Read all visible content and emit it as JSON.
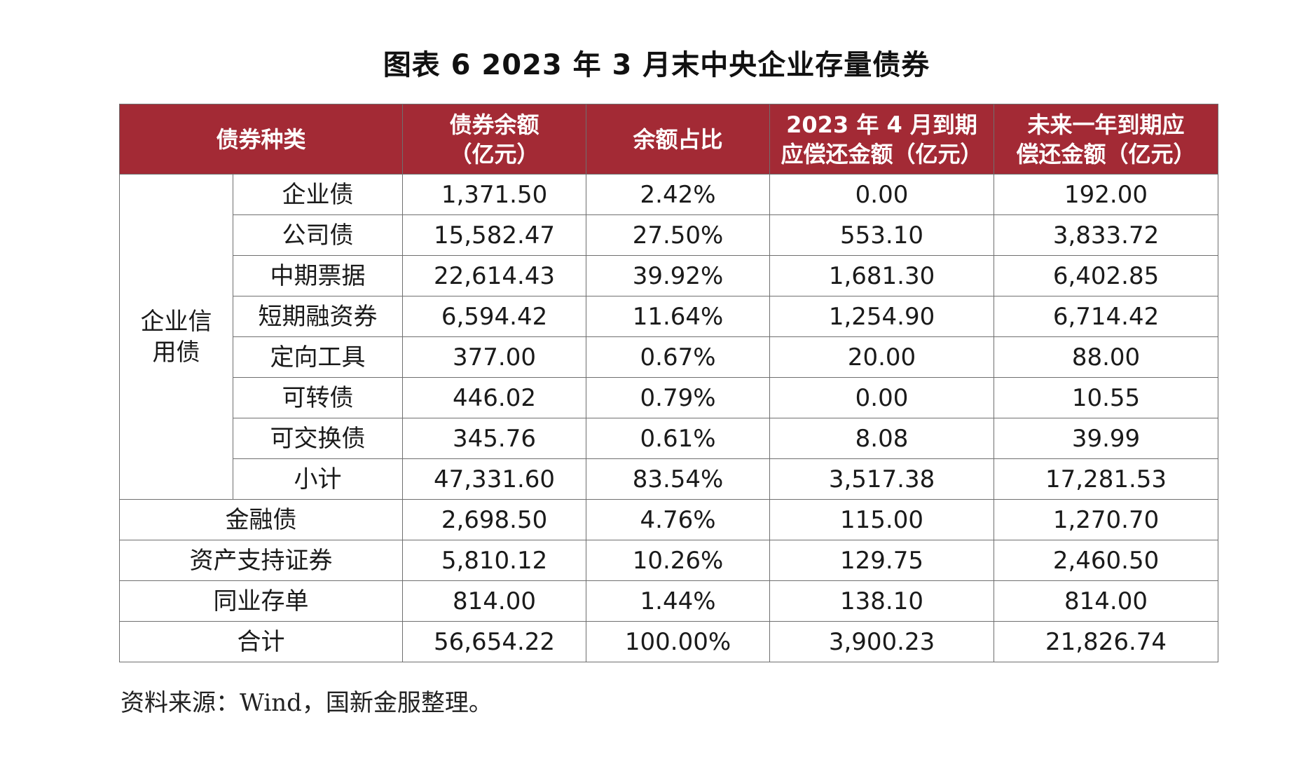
{
  "title": "图表 6  2023 年 3 月末中央企业存量债券",
  "table": {
    "headers": [
      "债券种类",
      "债券余额\n（亿元）",
      "余额占比",
      "2023 年 4 月到期\n应偿还金额（亿元）",
      "未来一年到期应\n偿还金额（亿元）"
    ],
    "group_label": "企业信\n用债",
    "group_rows": [
      [
        "企业债",
        "1,371.50",
        "2.42%",
        "0.00",
        "192.00"
      ],
      [
        "公司债",
        "15,582.47",
        "27.50%",
        "553.10",
        "3,833.72"
      ],
      [
        "中期票据",
        "22,614.43",
        "39.92%",
        "1,681.30",
        "6,402.85"
      ],
      [
        "短期融资券",
        "6,594.42",
        "11.64%",
        "1,254.90",
        "6,714.42"
      ],
      [
        "定向工具",
        "377.00",
        "0.67%",
        "20.00",
        "88.00"
      ],
      [
        "可转债",
        "446.02",
        "0.79%",
        "0.00",
        "10.55"
      ],
      [
        "可交换债",
        "345.76",
        "0.61%",
        "8.08",
        "39.99"
      ],
      [
        "小计",
        "47,331.60",
        "83.54%",
        "3,517.38",
        "17,281.53"
      ]
    ],
    "other_rows": [
      [
        "金融债",
        "2,698.50",
        "4.76%",
        "115.00",
        "1,270.70"
      ],
      [
        "资产支持证券",
        "5,810.12",
        "10.26%",
        "129.75",
        "2,460.50"
      ],
      [
        "同业存单",
        "814.00",
        "1.44%",
        "138.10",
        "814.00"
      ],
      [
        "合计",
        "56,654.22",
        "100.00%",
        "3,900.23",
        "21,826.74"
      ]
    ]
  },
  "source": "资料来源：Wind，国新金服整理。",
  "colors": {
    "header_bg": "#a32a35",
    "header_text": "#ffffff",
    "border": "#6f6f6f"
  }
}
